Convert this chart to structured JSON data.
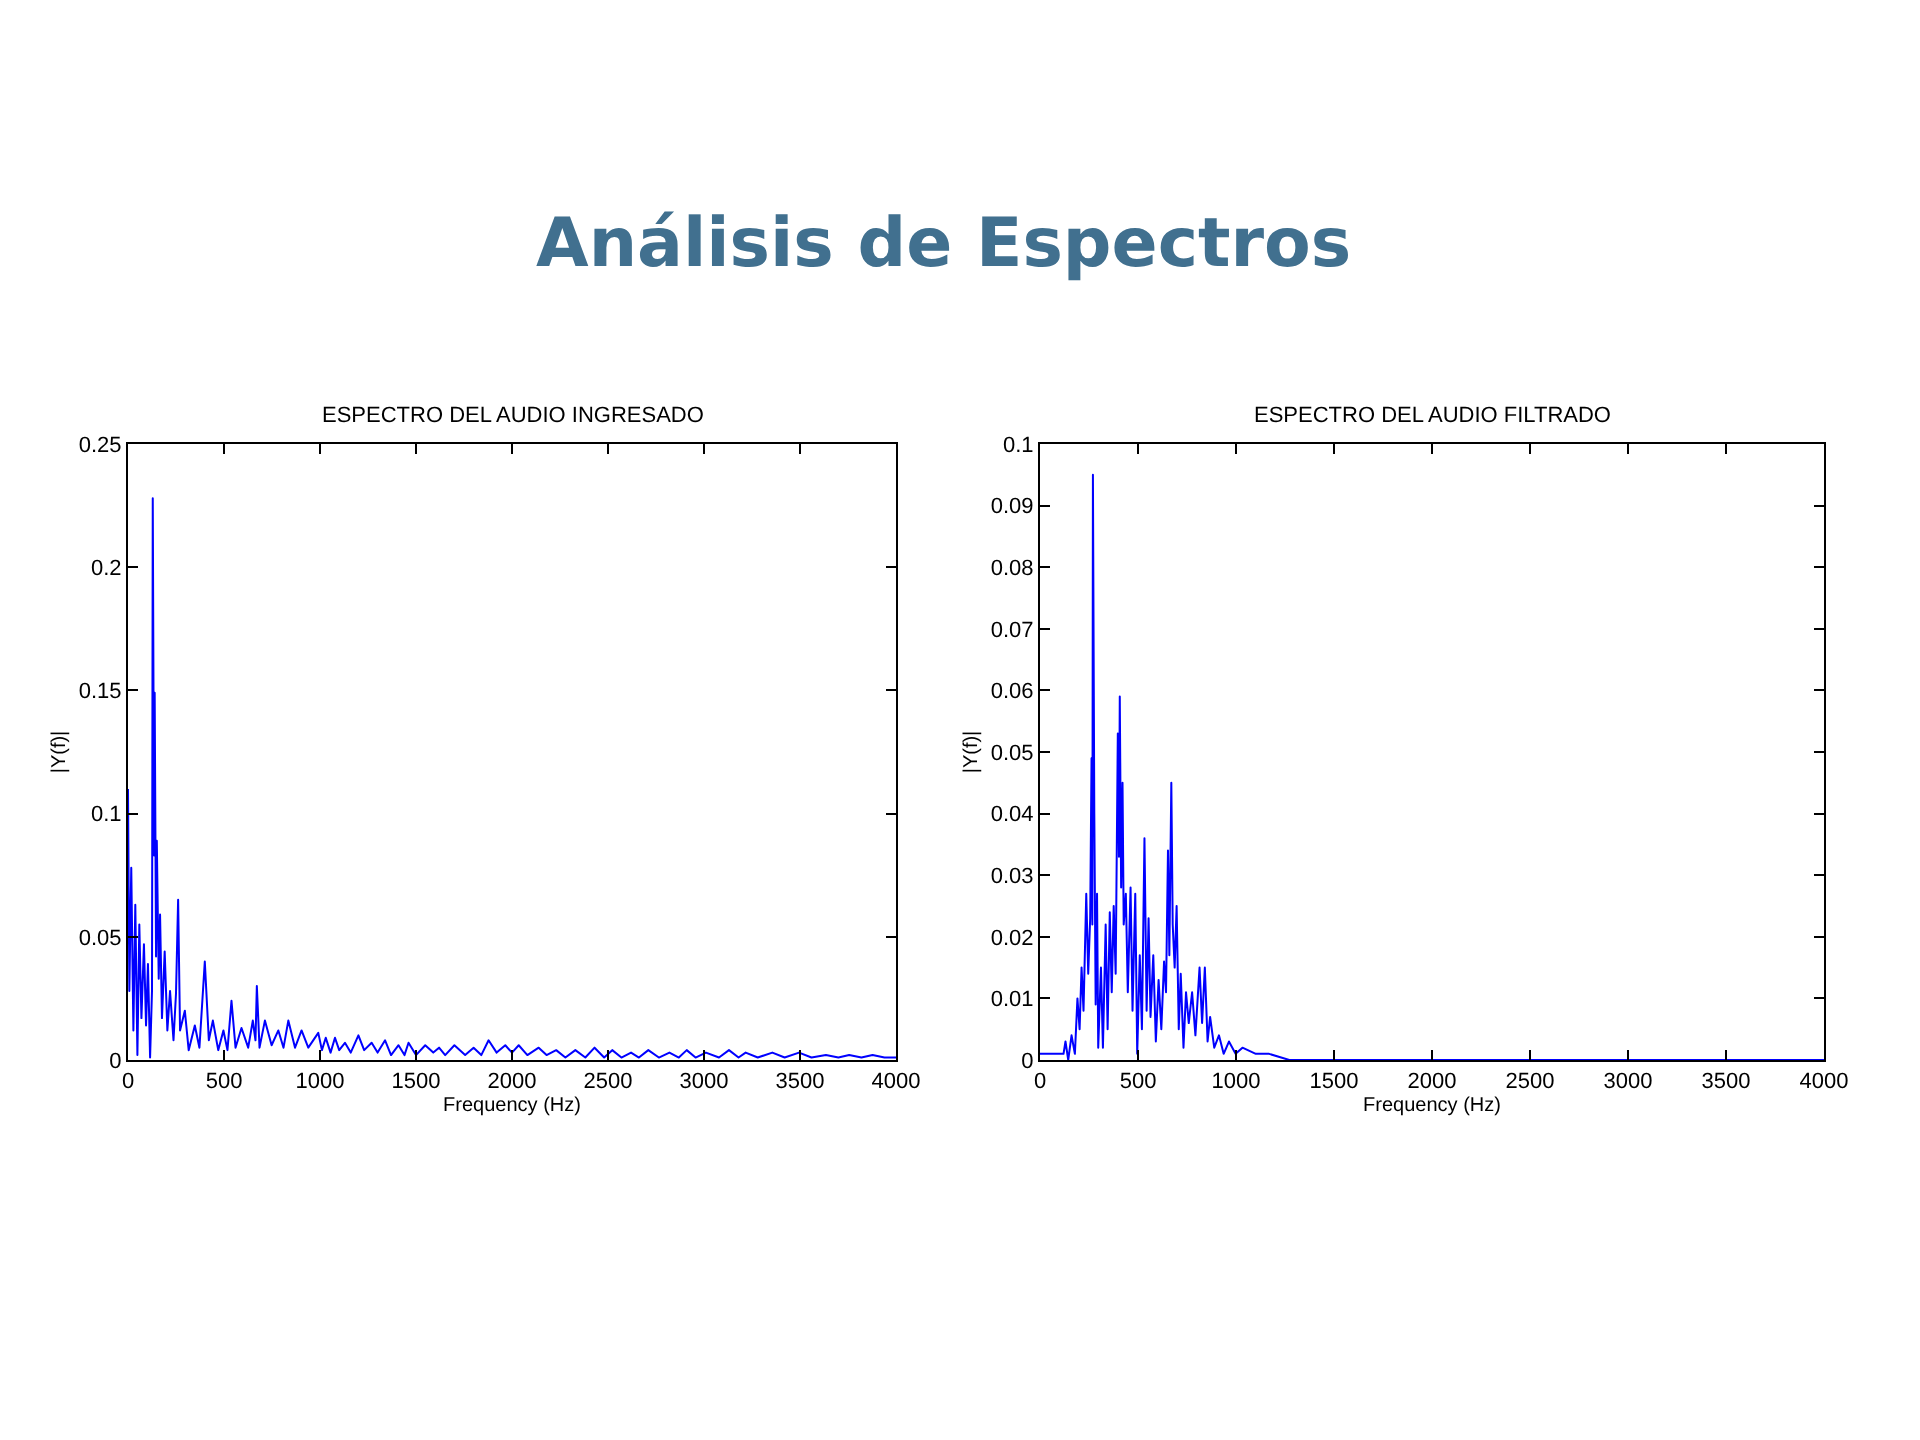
{
  "chart_data": [
    {
      "type": "line",
      "title": "ESPECTRO DEL AUDIO INGRESADO",
      "xlabel": "Frequency (Hz)",
      "ylabel": "|Y(f)|",
      "annotations": [
        "Análisis de Espectros"
      ],
      "x": [
        0,
        7,
        17,
        28,
        38,
        49,
        59,
        70,
        83,
        94,
        104,
        115,
        125,
        129,
        136,
        139,
        146,
        150,
        160,
        167,
        177,
        191,
        205,
        219,
        237,
        250,
        261,
        271,
        296,
        316,
        348,
        372,
        400,
        421,
        442,
        470,
        497,
        518,
        539,
        560,
        591,
        626,
        650,
        664,
        671,
        685,
        713,
        748,
        783,
        810,
        835,
        870,
        904,
        939,
        991,
        1010,
        1030,
        1055,
        1078,
        1100,
        1130,
        1160,
        1200,
        1230,
        1269,
        1300,
        1339,
        1370,
        1409,
        1440,
        1461,
        1500,
        1548,
        1590,
        1620,
        1652,
        1700,
        1756,
        1800,
        1840,
        1878,
        1920,
        1965,
        2000,
        2035,
        2080,
        2139,
        2180,
        2230,
        2278,
        2330,
        2382,
        2430,
        2480,
        2522,
        2570,
        2620,
        2661,
        2710,
        2765,
        2820,
        2869,
        2910,
        2956,
        3010,
        3078,
        3130,
        3180,
        3217,
        3280,
        3356,
        3420,
        3495,
        3560,
        3635,
        3700,
        3756,
        3820,
        3878,
        3940,
        4000
      ],
      "series": [
        {
          "color": "#0000ff",
          "values": [
            0.11,
            0.028,
            0.078,
            0.012,
            0.063,
            0.002,
            0.055,
            0.017,
            0.047,
            0.014,
            0.039,
            0.001,
            0.028,
            0.228,
            0.083,
            0.149,
            0.042,
            0.089,
            0.033,
            0.059,
            0.017,
            0.044,
            0.012,
            0.028,
            0.008,
            0.027,
            0.065,
            0.012,
            0.02,
            0.004,
            0.014,
            0.005,
            0.04,
            0.008,
            0.016,
            0.004,
            0.012,
            0.004,
            0.024,
            0.005,
            0.013,
            0.005,
            0.016,
            0.008,
            0.03,
            0.005,
            0.016,
            0.006,
            0.012,
            0.005,
            0.016,
            0.005,
            0.012,
            0.005,
            0.011,
            0.004,
            0.009,
            0.003,
            0.009,
            0.004,
            0.007,
            0.003,
            0.01,
            0.004,
            0.007,
            0.003,
            0.008,
            0.002,
            0.006,
            0.002,
            0.007,
            0.002,
            0.006,
            0.003,
            0.005,
            0.002,
            0.006,
            0.002,
            0.005,
            0.002,
            0.008,
            0.003,
            0.006,
            0.003,
            0.006,
            0.002,
            0.005,
            0.002,
            0.004,
            0.001,
            0.004,
            0.001,
            0.005,
            0.001,
            0.004,
            0.001,
            0.003,
            0.001,
            0.004,
            0.001,
            0.003,
            0.001,
            0.004,
            0.001,
            0.003,
            0.001,
            0.004,
            0.001,
            0.003,
            0.001,
            0.003,
            0.001,
            0.003,
            0.001,
            0.002,
            0.001,
            0.002,
            0.001,
            0.002,
            0.001,
            0.001
          ]
        }
      ],
      "xlim": [
        0,
        4000
      ],
      "ylim": [
        0,
        0.25
      ],
      "xticks": [
        0,
        500,
        1000,
        1500,
        2000,
        2500,
        3000,
        3500,
        4000
      ],
      "yticks": [
        0,
        0.05,
        0.1,
        0.15,
        0.2,
        0.25
      ],
      "grid": false,
      "marker": "none",
      "line_style": "solid"
    },
    {
      "type": "line",
      "title": "ESPECTRO DEL AUDIO FILTRADO",
      "xlabel": "Frequency (Hz)",
      "ylabel": "|Y(f)|",
      "x": [
        0,
        120,
        130,
        144,
        161,
        178,
        191,
        202,
        212,
        222,
        236,
        246,
        256,
        263,
        267,
        270,
        277,
        284,
        291,
        297,
        311,
        321,
        335,
        345,
        356,
        366,
        376,
        386,
        397,
        403,
        407,
        414,
        421,
        427,
        438,
        448,
        462,
        472,
        486,
        496,
        509,
        520,
        533,
        544,
        554,
        564,
        578,
        591,
        605,
        619,
        633,
        643,
        653,
        660,
        670,
        677,
        687,
        697,
        708,
        718,
        732,
        745,
        759,
        776,
        793,
        814,
        827,
        841,
        855,
        868,
        889,
        913,
        937,
        964,
        998,
        1033,
        1101,
        1169,
        1272,
        4000
      ],
      "series": [
        {
          "color": "#0000ff",
          "values": [
            0.001,
            0.001,
            0.003,
            0.0,
            0.004,
            0.001,
            0.01,
            0.005,
            0.015,
            0.008,
            0.027,
            0.014,
            0.023,
            0.049,
            0.022,
            0.095,
            0.04,
            0.009,
            0.027,
            0.002,
            0.015,
            0.002,
            0.022,
            0.005,
            0.024,
            0.011,
            0.025,
            0.014,
            0.053,
            0.033,
            0.059,
            0.028,
            0.045,
            0.022,
            0.027,
            0.011,
            0.028,
            0.008,
            0.027,
            0.001,
            0.017,
            0.005,
            0.036,
            0.008,
            0.023,
            0.007,
            0.017,
            0.003,
            0.013,
            0.005,
            0.016,
            0.011,
            0.034,
            0.017,
            0.045,
            0.022,
            0.015,
            0.025,
            0.005,
            0.014,
            0.002,
            0.011,
            0.006,
            0.011,
            0.004,
            0.015,
            0.006,
            0.015,
            0.003,
            0.007,
            0.002,
            0.004,
            0.001,
            0.003,
            0.001,
            0.002,
            0.001,
            0.001,
            0.0,
            0.0
          ]
        }
      ],
      "xlim": [
        0,
        4000
      ],
      "ylim": [
        0,
        0.1
      ],
      "xticks": [
        0,
        500,
        1000,
        1500,
        2000,
        2500,
        3000,
        3500,
        4000
      ],
      "yticks": [
        0,
        0.01,
        0.02,
        0.03,
        0.04,
        0.05,
        0.06,
        0.07,
        0.08,
        0.09,
        0.1
      ],
      "grid": false,
      "marker": "none",
      "line_style": "solid"
    }
  ]
}
